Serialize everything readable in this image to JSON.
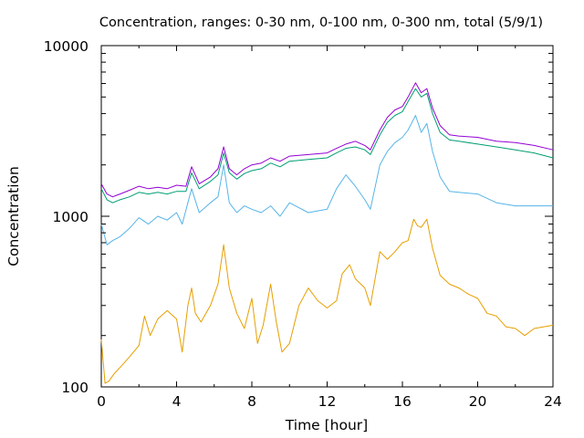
{
  "chart_data": {
    "type": "line",
    "title": "Concentration, ranges: 0-30 nm, 0-100 nm, 0-300 nm, total (5/9/1)",
    "xlabel": "Time [hour]",
    "ylabel": "Concentration",
    "xlim": [
      0,
      24
    ],
    "ylim": [
      100,
      10000
    ],
    "yscale": "log",
    "grid": false,
    "legend": "none",
    "x_ticks": [
      "0",
      "4",
      "8",
      "12",
      "16",
      "20",
      "24"
    ],
    "y_ticks": [
      "100",
      "1000",
      "10000"
    ],
    "series": [
      {
        "color": "#9400d3",
        "x": [
          0,
          0.3,
          0.6,
          1,
          1.5,
          2,
          2.5,
          3,
          3.5,
          4,
          4.5,
          4.8,
          5.2,
          5.8,
          6.2,
          6.5,
          6.8,
          7.2,
          7.6,
          8,
          8.5,
          9,
          9.5,
          10,
          11,
          12,
          12.5,
          13,
          13.5,
          14,
          14.3,
          14.8,
          15.2,
          15.6,
          16,
          16.3,
          16.7,
          17,
          17.3,
          17.6,
          18,
          18.5,
          19,
          20,
          21,
          22,
          23,
          24
        ],
        "y": [
          1550,
          1350,
          1300,
          1350,
          1420,
          1500,
          1450,
          1480,
          1450,
          1520,
          1500,
          1950,
          1550,
          1700,
          1900,
          2550,
          1900,
          1750,
          1900,
          2000,
          2050,
          2200,
          2100,
          2250,
          2300,
          2350,
          2500,
          2650,
          2750,
          2600,
          2450,
          3200,
          3800,
          4200,
          4400,
          5000,
          6050,
          5300,
          5600,
          4300,
          3400,
          3000,
          2950,
          2900,
          2750,
          2700,
          2600,
          2450
        ]
      },
      {
        "color": "#009e73",
        "x": [
          0,
          0.3,
          0.6,
          1,
          1.5,
          2,
          2.5,
          3,
          3.5,
          4,
          4.5,
          4.8,
          5.2,
          5.8,
          6.2,
          6.5,
          6.8,
          7.2,
          7.6,
          8,
          8.5,
          9,
          9.5,
          10,
          11,
          12,
          12.5,
          13,
          13.5,
          14,
          14.3,
          14.8,
          15.2,
          15.6,
          16,
          16.3,
          16.7,
          17,
          17.3,
          17.6,
          18,
          18.5,
          19,
          20,
          21,
          22,
          23,
          24
        ],
        "y": [
          1450,
          1250,
          1200,
          1250,
          1300,
          1380,
          1350,
          1380,
          1350,
          1400,
          1400,
          1800,
          1450,
          1600,
          1750,
          2350,
          1800,
          1650,
          1780,
          1850,
          1900,
          2050,
          1950,
          2100,
          2150,
          2200,
          2350,
          2500,
          2550,
          2450,
          2300,
          3000,
          3550,
          3900,
          4100,
          4700,
          5600,
          5000,
          5250,
          4000,
          3100,
          2800,
          2750,
          2650,
          2550,
          2450,
          2350,
          2200
        ]
      },
      {
        "color": "#56b4e9",
        "x": [
          0,
          0.3,
          0.6,
          1,
          1.5,
          2,
          2.5,
          3,
          3.5,
          4,
          4.3,
          4.8,
          5.2,
          5.8,
          6.2,
          6.5,
          6.8,
          7.2,
          7.6,
          8,
          8.5,
          9,
          9.5,
          10,
          11,
          12,
          12.5,
          13,
          13.5,
          14,
          14.3,
          14.8,
          15.2,
          15.6,
          16,
          16.3,
          16.7,
          17,
          17.3,
          17.6,
          18,
          18.5,
          19,
          20,
          21,
          22,
          23,
          24
        ],
        "y": [
          900,
          680,
          720,
          760,
          850,
          980,
          900,
          1000,
          950,
          1050,
          900,
          1450,
          1050,
          1200,
          1300,
          2000,
          1200,
          1050,
          1150,
          1100,
          1050,
          1150,
          1000,
          1200,
          1050,
          1100,
          1450,
          1750,
          1500,
          1250,
          1100,
          2000,
          2400,
          2700,
          2900,
          3200,
          3900,
          3100,
          3500,
          2400,
          1700,
          1400,
          1380,
          1350,
          1200,
          1150,
          1150,
          1150
        ]
      },
      {
        "color": "#e69f00",
        "x": [
          0,
          0.2,
          0.4,
          0.7,
          1,
          1.5,
          2,
          2.3,
          2.6,
          3,
          3.5,
          4,
          4.3,
          4.6,
          4.8,
          5,
          5.3,
          5.8,
          6.2,
          6.5,
          6.8,
          7.2,
          7.6,
          8,
          8.3,
          8.6,
          9,
          9.3,
          9.6,
          10,
          10.5,
          11,
          11.5,
          12,
          12.5,
          12.8,
          13.2,
          13.5,
          14,
          14.3,
          14.8,
          15.2,
          15.6,
          16,
          16.3,
          16.6,
          16.8,
          17,
          17.3,
          17.6,
          18,
          18.5,
          19,
          19.5,
          20,
          20.5,
          21,
          21.5,
          22,
          22.5,
          23,
          24
        ],
        "y": [
          190,
          105,
          108,
          120,
          130,
          150,
          175,
          260,
          200,
          250,
          280,
          250,
          160,
          300,
          380,
          270,
          240,
          300,
          400,
          680,
          380,
          270,
          220,
          330,
          180,
          230,
          400,
          240,
          160,
          180,
          300,
          380,
          320,
          290,
          320,
          460,
          520,
          430,
          380,
          300,
          620,
          560,
          620,
          700,
          720,
          960,
          880,
          860,
          960,
          650,
          450,
          400,
          380,
          350,
          330,
          270,
          260,
          225,
          220,
          200,
          220,
          230
        ]
      }
    ]
  }
}
